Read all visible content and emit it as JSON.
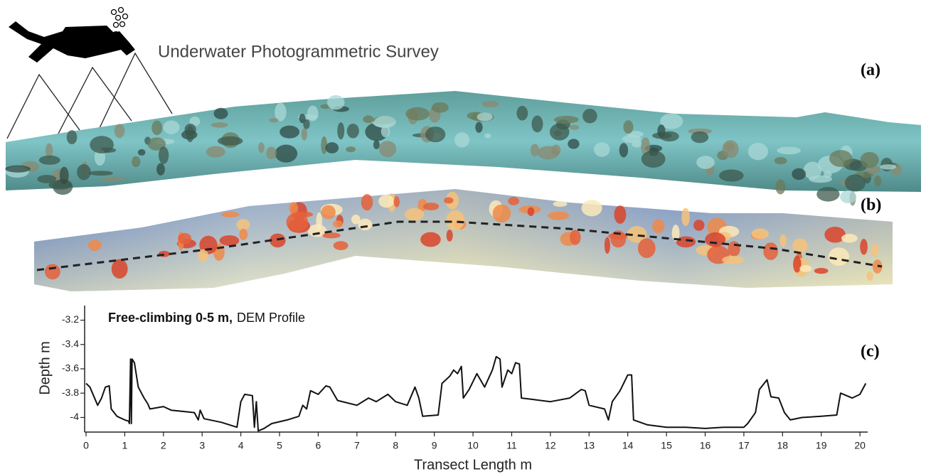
{
  "survey_title": "Underwater Photogrammetric Survey",
  "panel_labels": [
    "(a)",
    "(b)",
    "(c)"
  ],
  "chart_data": {
    "type": "line",
    "title": "Free-climbing  0-5 m,",
    "subtitle": "DEM Profile",
    "x_label": "Transect Length m",
    "y_label": "Depth m",
    "xlim": [
      0,
      20.2
    ],
    "ylim": [
      -4.12,
      -3.08
    ],
    "xticks": [
      0,
      1,
      2,
      3,
      4,
      5,
      6,
      7,
      8,
      9,
      10,
      11,
      12,
      13,
      14,
      15,
      16,
      17,
      18,
      19,
      20
    ],
    "yticks": [
      -4,
      -3.8,
      -3.6,
      -3.4,
      -3.2
    ],
    "color": "#111111",
    "x": [
      0,
      0.1,
      0.3,
      0.4,
      0.5,
      0.6,
      0.65,
      0.8,
      1.0,
      1.1,
      1.12,
      1.15,
      1.17,
      1.19,
      1.25,
      1.35,
      1.5,
      1.6,
      1.65,
      2.0,
      2.2,
      2.5,
      2.8,
      2.9,
      2.95,
      3.05,
      3.5,
      3.9,
      4.0,
      4.1,
      4.3,
      4.35,
      4.4,
      4.45,
      4.6,
      4.8,
      5.2,
      5.5,
      5.6,
      5.7,
      5.8,
      6.0,
      6.2,
      6.3,
      6.5,
      7.0,
      7.3,
      7.5,
      7.8,
      8.0,
      8.3,
      8.5,
      8.6,
      8.7,
      9.1,
      9.2,
      9.4,
      9.5,
      9.6,
      9.7,
      9.75,
      9.9,
      10.1,
      10.3,
      10.5,
      10.6,
      10.7,
      10.75,
      10.9,
      11.0,
      11.1,
      11.2,
      11.25,
      11.5,
      12.0,
      12.5,
      12.8,
      12.9,
      13.0,
      13.4,
      13.5,
      13.6,
      13.8,
      14.0,
      14.1,
      14.15,
      14.5,
      15.0,
      15.5,
      16.0,
      16.5,
      17.0,
      17.1,
      17.3,
      17.4,
      17.6,
      17.7,
      17.9,
      18.05,
      18.2,
      18.5,
      19.0,
      19.4,
      19.5,
      19.8,
      20.0,
      20.15
    ],
    "values": [
      -3.72,
      -3.75,
      -3.9,
      -3.84,
      -3.75,
      -3.74,
      -3.93,
      -3.99,
      -4.02,
      -4.03,
      -4.05,
      -3.52,
      -4.05,
      -3.52,
      -3.55,
      -3.75,
      -3.84,
      -3.89,
      -3.93,
      -3.91,
      -3.94,
      -3.95,
      -3.96,
      -4.02,
      -3.94,
      -4.01,
      -4.04,
      -4.08,
      -3.87,
      -3.81,
      -3.82,
      -4.08,
      -3.87,
      -4.11,
      -4.09,
      -4.05,
      -4.02,
      -3.99,
      -3.9,
      -3.93,
      -3.78,
      -3.81,
      -3.74,
      -3.75,
      -3.86,
      -3.9,
      -3.84,
      -3.87,
      -3.81,
      -3.87,
      -3.9,
      -3.75,
      -3.84,
      -3.99,
      -3.98,
      -3.72,
      -3.66,
      -3.61,
      -3.64,
      -3.58,
      -3.84,
      -3.77,
      -3.64,
      -3.75,
      -3.61,
      -3.5,
      -3.52,
      -3.75,
      -3.61,
      -3.64,
      -3.55,
      -3.56,
      -3.84,
      -3.85,
      -3.87,
      -3.84,
      -3.77,
      -3.78,
      -3.9,
      -3.93,
      -4.02,
      -3.87,
      -3.78,
      -3.65,
      -3.65,
      -4.02,
      -4.06,
      -4.08,
      -4.08,
      -4.09,
      -4.08,
      -4.08,
      -4.05,
      -3.96,
      -3.77,
      -3.69,
      -3.83,
      -3.84,
      -3.96,
      -4.02,
      -4.0,
      -3.99,
      -3.98,
      -3.8,
      -3.84,
      -3.81,
      -3.72
    ]
  }
}
